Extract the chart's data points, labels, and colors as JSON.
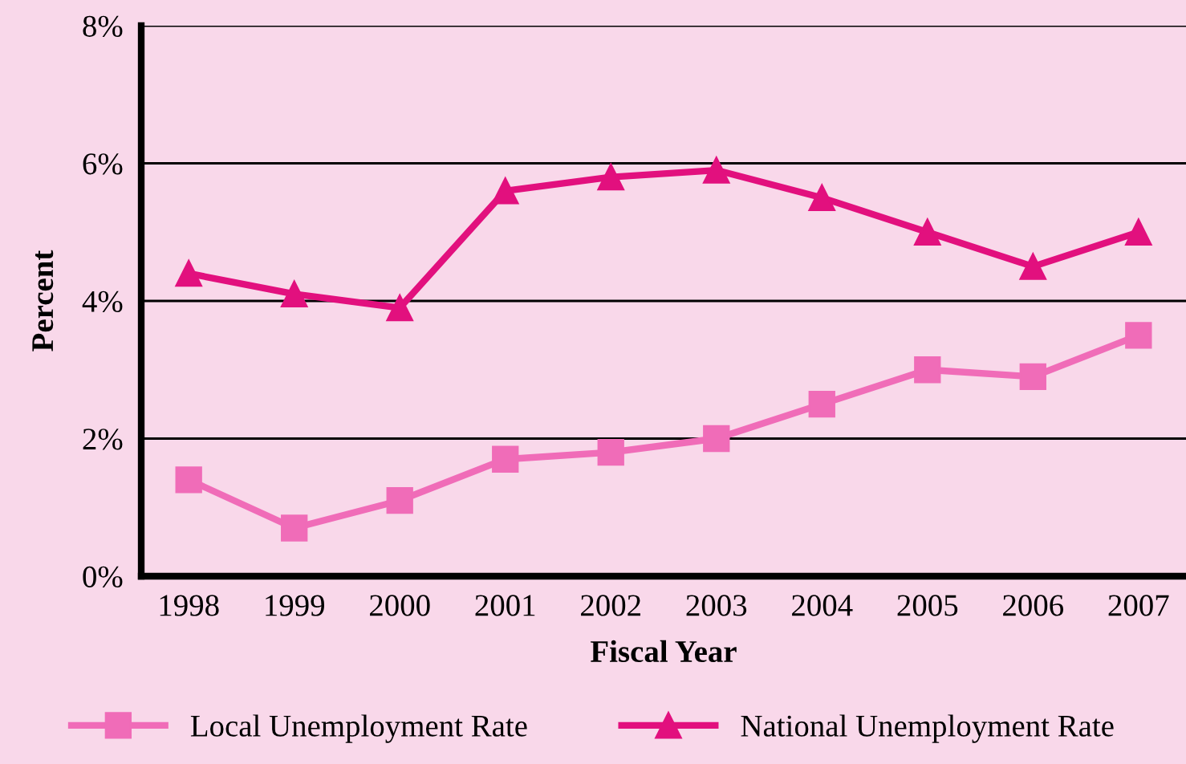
{
  "chart_data": {
    "type": "line",
    "xlabel": "Fiscal Year",
    "ylabel": "Percent",
    "categories": [
      "1998",
      "1999",
      "2000",
      "2001",
      "2002",
      "2003",
      "2004",
      "2005",
      "2006",
      "2007"
    ],
    "series": [
      {
        "name": "Local Unemployment Rate",
        "color": "#f06cb8",
        "marker": "square",
        "values": [
          1.4,
          0.7,
          1.1,
          1.7,
          1.8,
          2.0,
          2.5,
          3.0,
          2.9,
          3.5
        ]
      },
      {
        "name": "National Unemployment Rate",
        "color": "#e2107e",
        "marker": "triangle",
        "values": [
          4.4,
          4.1,
          3.9,
          5.6,
          5.8,
          5.9,
          5.5,
          5.0,
          4.5,
          5.0
        ]
      }
    ],
    "ylim": [
      0,
      8
    ],
    "yticks": [
      {
        "value": 0,
        "label": "0%"
      },
      {
        "value": 2,
        "label": "2%"
      },
      {
        "value": 4,
        "label": "4%"
      },
      {
        "value": 6,
        "label": "6%"
      },
      {
        "value": 8,
        "label": "8%"
      }
    ],
    "grid": "y",
    "legend": "bottom",
    "line_style": "solid"
  }
}
